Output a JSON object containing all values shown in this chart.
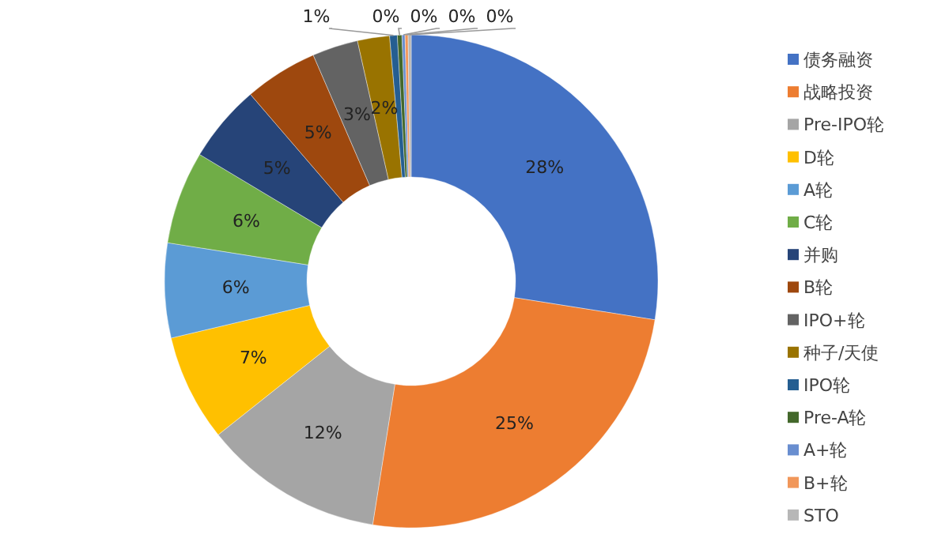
{
  "chart_data": {
    "type": "donut",
    "categories": [
      "债务融资",
      "战略投资",
      "Pre-IPO轮",
      "D轮",
      "A轮",
      "C轮",
      "并购",
      "B轮",
      "IPO+轮",
      "种子/天使",
      "IPO轮",
      "Pre-A轮",
      "A+轮",
      "B+轮",
      "STO"
    ],
    "values": [
      27.5,
      25,
      11.8,
      7,
      6.2,
      6.1,
      5.1,
      4.8,
      3,
      2.1,
      0.5,
      0.3,
      0.2,
      0.2,
      0.2
    ],
    "value_labels": [
      "28%",
      "25%",
      "12%",
      "7%",
      "6%",
      "6%",
      "5%",
      "5%",
      "3%",
      "2%",
      "1%",
      "0%",
      "0%",
      "0%",
      "0%"
    ],
    "colors": [
      "#4472c4",
      "#ed7d31",
      "#a5a5a5",
      "#ffc000",
      "#5b9bd5",
      "#70ad47",
      "#264478",
      "#9e480e",
      "#636363",
      "#997300",
      "#255e91",
      "#43682b",
      "#698ed0",
      "#f1975a",
      "#b7b7b7"
    ],
    "legend": "right"
  }
}
